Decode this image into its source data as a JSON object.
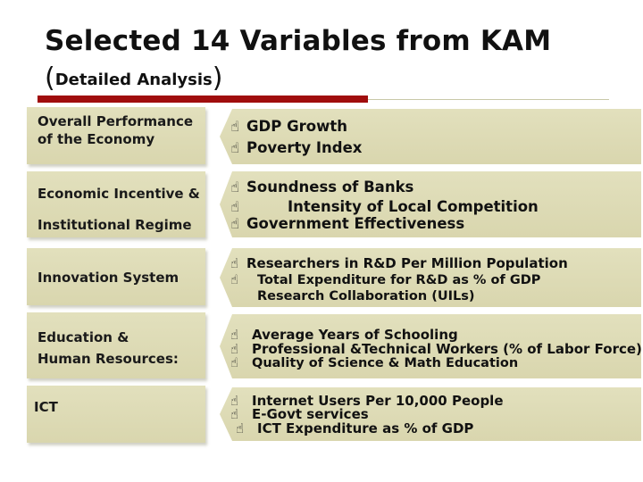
{
  "title": "Selected 14 Variables from KAM",
  "subtitle": {
    "open": "(",
    "text": "Detailed Analysis",
    "close": ")"
  },
  "icon": "cursor-hand-icon",
  "rows": [
    {
      "category_lines": [
        "Overall Performance",
        "of the Economy"
      ],
      "variables": [
        "GDP Growth",
        "Poverty Index"
      ]
    },
    {
      "category_lines": [
        "Economic Incentive &",
        "Institutional Regime"
      ],
      "variables": [
        "Soundness of Banks",
        "Intensity of Local Competition",
        "Government Effectiveness"
      ]
    },
    {
      "category_lines": [
        "Innovation System"
      ],
      "variables": [
        "Researchers in R&D Per Million Population",
        "Total Expenditure for R&D as % of GDP",
        "Research Collaboration (UILs)"
      ]
    },
    {
      "category_lines": [
        "Education &",
        "Human Resources:"
      ],
      "variables": [
        "Average Years of Schooling",
        "Professional &Technical Workers (% of Labor Force)",
        "Quality of Science & Math Education"
      ]
    },
    {
      "category_lines": [
        "ICT"
      ],
      "variables": [
        "Internet Users Per 10,000 People",
        "E-Govt services",
        "ICT Expenditure as % of GDP"
      ]
    }
  ]
}
